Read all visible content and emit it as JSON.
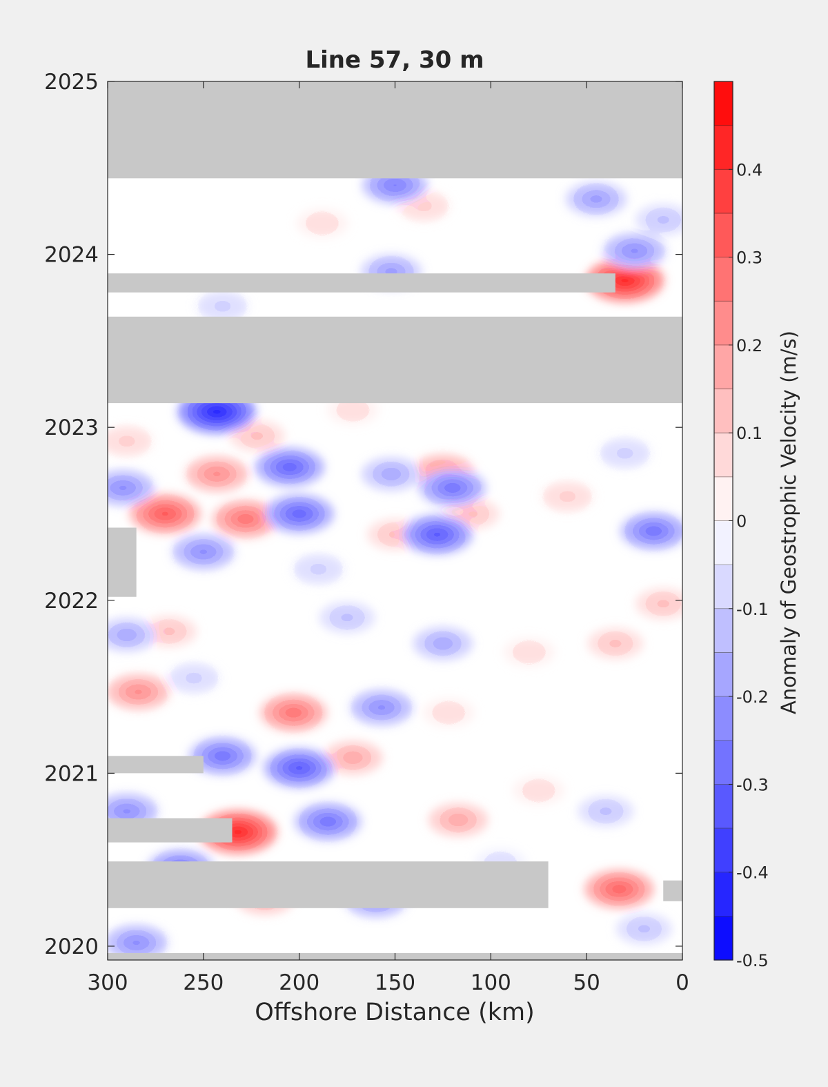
{
  "chart_data": {
    "type": "heatmap",
    "title": "Line 57, 30 m",
    "xlabel": "Offshore Distance (km)",
    "ylabel": "",
    "x_ticks": [
      300,
      250,
      200,
      150,
      100,
      50,
      0
    ],
    "y_ticks": [
      2020,
      2021,
      2022,
      2023,
      2024,
      2025
    ],
    "xlim": [
      300,
      0
    ],
    "ylim": [
      2019.92,
      2025
    ],
    "x_reversed": true,
    "colorbar": {
      "label": "Anomaly of Geostrophic Velocity (m/s)",
      "ticks": [
        0.4,
        0.3,
        0.2,
        0.1,
        0,
        -0.1,
        -0.2,
        -0.3,
        -0.4,
        -0.5
      ],
      "tick_labels": [
        "0.4",
        "0.3",
        "0.2",
        "0.1",
        "0",
        "-0.1",
        "-0.2",
        "-0.3",
        "-0.4",
        "-0.5"
      ],
      "range": [
        -0.5,
        0.5
      ],
      "levels": 20
    },
    "no_data_color": "#c8c8c8",
    "no_data_periods": [
      {
        "x": [
          300,
          0
        ],
        "y": [
          2024.44,
          2025
        ]
      },
      {
        "x": [
          300,
          35
        ],
        "y": [
          2023.78,
          2023.89
        ]
      },
      {
        "x": [
          300,
          0
        ],
        "y": [
          2023.14,
          2023.64
        ]
      },
      {
        "x": [
          300,
          285
        ],
        "y": [
          2022.02,
          2022.42
        ]
      },
      {
        "x": [
          300,
          250
        ],
        "y": [
          2021.0,
          2021.1
        ]
      },
      {
        "x": [
          300,
          235
        ],
        "y": [
          2020.6,
          2020.74
        ]
      },
      {
        "x": [
          300,
          70
        ],
        "y": [
          2020.22,
          2020.49
        ]
      },
      {
        "x": [
          10,
          0
        ],
        "y": [
          2020.26,
          2020.38
        ]
      },
      {
        "x": [
          300,
          0
        ],
        "y": [
          2019.92,
          2019.96
        ]
      }
    ],
    "anomaly_features": [
      {
        "x": 30,
        "y": 2023.85,
        "value": 0.45
      },
      {
        "x": 232,
        "y": 2020.66,
        "value": 0.45
      },
      {
        "x": 270,
        "y": 2022.5,
        "value": 0.35
      },
      {
        "x": 33,
        "y": 2020.33,
        "value": 0.33
      },
      {
        "x": 203,
        "y": 2021.35,
        "value": 0.3
      },
      {
        "x": 228,
        "y": 2022.47,
        "value": 0.3
      },
      {
        "x": 243,
        "y": 2022.73,
        "value": 0.25
      },
      {
        "x": 125,
        "y": 2022.74,
        "value": 0.25
      },
      {
        "x": 284,
        "y": 2021.47,
        "value": 0.25
      },
      {
        "x": 117,
        "y": 2020.73,
        "value": 0.2
      },
      {
        "x": 172,
        "y": 2021.09,
        "value": 0.2
      },
      {
        "x": 150,
        "y": 2022.38,
        "value": 0.15
      },
      {
        "x": 110,
        "y": 2022.5,
        "value": 0.15
      },
      {
        "x": 10,
        "y": 2021.98,
        "value": 0.15
      },
      {
        "x": 35,
        "y": 2021.75,
        "value": 0.15
      },
      {
        "x": 222,
        "y": 2022.95,
        "value": 0.15
      },
      {
        "x": 218,
        "y": 2020.28,
        "value": 0.2
      },
      {
        "x": 135,
        "y": 2024.28,
        "value": 0.12
      },
      {
        "x": 188,
        "y": 2024.18,
        "value": 0.1
      },
      {
        "x": 268,
        "y": 2021.82,
        "value": 0.15
      },
      {
        "x": 122,
        "y": 2021.35,
        "value": 0.1
      },
      {
        "x": 80,
        "y": 2021.7,
        "value": 0.1
      },
      {
        "x": 75,
        "y": 2020.9,
        "value": 0.1
      },
      {
        "x": 290,
        "y": 2022.92,
        "value": 0.12
      },
      {
        "x": 172,
        "y": 2023.1,
        "value": 0.1
      },
      {
        "x": 60,
        "y": 2022.6,
        "value": 0.12
      },
      {
        "x": 243,
        "y": 2023.09,
        "value": -0.45
      },
      {
        "x": 205,
        "y": 2022.77,
        "value": -0.33
      },
      {
        "x": 200,
        "y": 2022.5,
        "value": -0.33
      },
      {
        "x": 128,
        "y": 2022.38,
        "value": -0.35
      },
      {
        "x": 200,
        "y": 2021.03,
        "value": -0.35
      },
      {
        "x": 157,
        "y": 2021.38,
        "value": -0.25
      },
      {
        "x": 120,
        "y": 2022.65,
        "value": -0.3
      },
      {
        "x": 250,
        "y": 2022.28,
        "value": -0.25
      },
      {
        "x": 292,
        "y": 2022.65,
        "value": -0.25
      },
      {
        "x": 240,
        "y": 2021.1,
        "value": -0.3
      },
      {
        "x": 15,
        "y": 2022.4,
        "value": -0.3
      },
      {
        "x": 150,
        "y": 2024.4,
        "value": -0.28
      },
      {
        "x": 45,
        "y": 2024.32,
        "value": -0.22
      },
      {
        "x": 25,
        "y": 2024.02,
        "value": -0.25
      },
      {
        "x": 152,
        "y": 2023.9,
        "value": -0.22
      },
      {
        "x": 160,
        "y": 2020.27,
        "value": -0.25
      },
      {
        "x": 285,
        "y": 2020.02,
        "value": -0.25
      },
      {
        "x": 262,
        "y": 2020.45,
        "value": -0.3
      },
      {
        "x": 290,
        "y": 2020.78,
        "value": -0.25
      },
      {
        "x": 290,
        "y": 2021.8,
        "value": -0.2
      },
      {
        "x": 185,
        "y": 2020.72,
        "value": -0.3
      },
      {
        "x": 175,
        "y": 2021.9,
        "value": -0.15
      },
      {
        "x": 125,
        "y": 2021.75,
        "value": -0.2
      },
      {
        "x": 152,
        "y": 2022.73,
        "value": -0.2
      },
      {
        "x": 190,
        "y": 2022.18,
        "value": -0.12
      },
      {
        "x": 10,
        "y": 2024.2,
        "value": -0.15
      },
      {
        "x": 40,
        "y": 2020.78,
        "value": -0.15
      },
      {
        "x": 20,
        "y": 2020.1,
        "value": -0.15
      },
      {
        "x": 30,
        "y": 2022.85,
        "value": -0.12
      },
      {
        "x": 95,
        "y": 2020.48,
        "value": -0.1
      },
      {
        "x": 255,
        "y": 2021.55,
        "value": -0.12
      },
      {
        "x": 240,
        "y": 2023.7,
        "value": -0.12
      }
    ]
  }
}
